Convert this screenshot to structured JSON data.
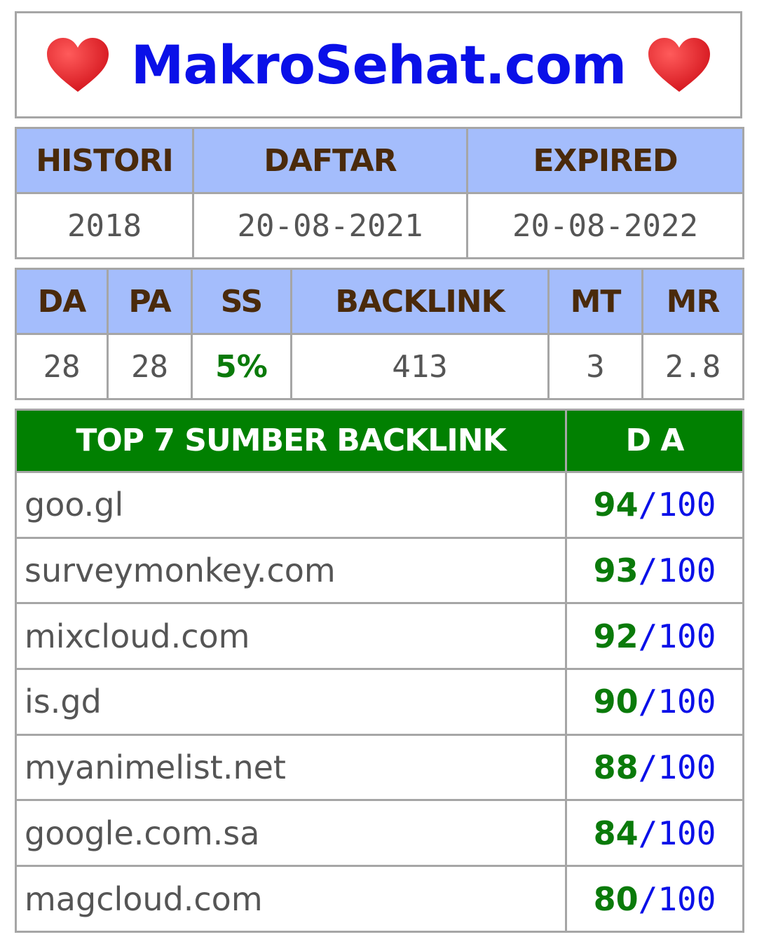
{
  "title": {
    "site_name": "MakroSehat.com",
    "left_icon": "heart-icon",
    "right_icon": "heart-icon",
    "heart_color": "#e02020"
  },
  "domain_info": {
    "headers": [
      "HISTORI",
      "DAFTAR",
      "EXPIRED"
    ],
    "values": [
      "2018",
      "20-08-2021",
      "20-08-2022"
    ]
  },
  "metrics": {
    "headers": [
      "DA",
      "PA",
      "SS",
      "BACKLINK",
      "MT",
      "MR"
    ],
    "values": [
      "28",
      "28",
      "5%",
      "413",
      "3",
      "2.8"
    ]
  },
  "backlinks": {
    "header_source": "TOP 7 SUMBER BACKLINK",
    "header_da": "D A",
    "separator": "/",
    "max": "100",
    "rows": [
      {
        "site": "goo.gl",
        "da": "94"
      },
      {
        "site": "surveymonkey.com",
        "da": "93"
      },
      {
        "site": "mixcloud.com",
        "da": "92"
      },
      {
        "site": "is.gd",
        "da": "90"
      },
      {
        "site": "myanimelist.net",
        "da": "88"
      },
      {
        "site": "google.com.sa",
        "da": "84"
      },
      {
        "site": "magcloud.com",
        "da": "80"
      }
    ]
  },
  "colors": {
    "header_blue": "#a4bdfc",
    "header_green": "#018001",
    "title_blue": "#0a10e8",
    "score_green": "#0a7a0a"
  }
}
